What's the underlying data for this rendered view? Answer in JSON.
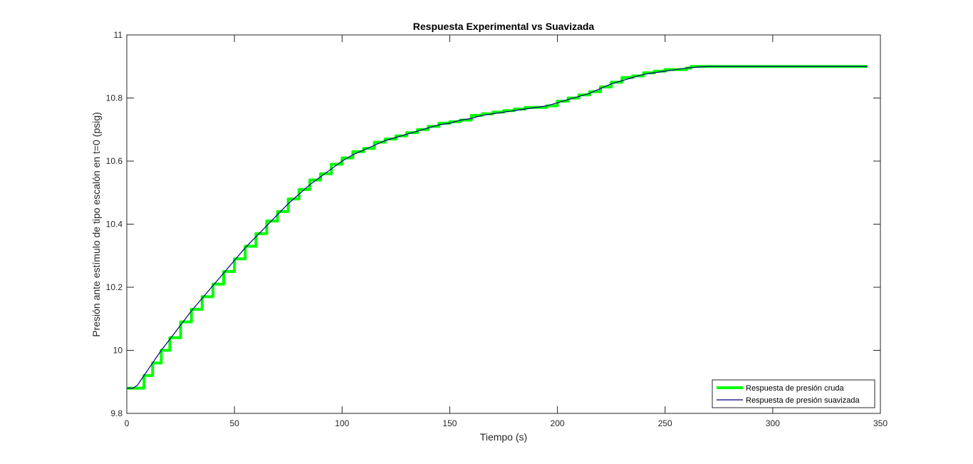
{
  "chart_data": {
    "type": "line",
    "title": "Respuesta Experimental vs Suavizada",
    "xlabel": "Tiempo (s)",
    "ylabel": "Presión ante estímulo de tipo escalón en t=0 (psig)",
    "xlim": [
      0,
      350
    ],
    "ylim": [
      9.8,
      11
    ],
    "xticks": [
      0,
      50,
      100,
      150,
      200,
      250,
      300,
      350
    ],
    "yticks": [
      9.8,
      10,
      10.2,
      10.4,
      10.6,
      10.8,
      11
    ],
    "xtick_labels": [
      "0",
      "50",
      "100",
      "150",
      "200",
      "250",
      "300",
      "350"
    ],
    "ytick_labels": [
      "9.8",
      "10",
      "10.2",
      "10.4",
      "10.6",
      "10.8",
      "11"
    ],
    "grid": false,
    "legend_position": "bottom-right",
    "series": [
      {
        "name": "Respuesta de presión cruda",
        "color": "#00ff00",
        "style": "thick-step",
        "x": [
          0,
          5,
          8,
          12,
          16,
          20,
          25,
          30,
          35,
          40,
          45,
          50,
          55,
          60,
          65,
          70,
          75,
          80,
          85,
          90,
          95,
          100,
          105,
          110,
          115,
          120,
          125,
          130,
          135,
          140,
          145,
          150,
          155,
          160,
          165,
          170,
          175,
          180,
          185,
          190,
          195,
          200,
          205,
          210,
          215,
          220,
          225,
          230,
          235,
          240,
          245,
          250,
          255,
          260,
          262,
          280,
          300,
          320,
          344
        ],
        "y": [
          9.88,
          9.88,
          9.92,
          9.96,
          10.0,
          10.04,
          10.09,
          10.13,
          10.17,
          10.21,
          10.25,
          10.29,
          10.33,
          10.37,
          10.41,
          10.44,
          10.48,
          10.51,
          10.54,
          10.56,
          10.59,
          10.61,
          10.63,
          10.64,
          10.66,
          10.67,
          10.68,
          10.69,
          10.7,
          10.71,
          10.72,
          10.725,
          10.73,
          10.745,
          10.75,
          10.755,
          10.76,
          10.765,
          10.77,
          10.77,
          10.775,
          10.79,
          10.8,
          10.81,
          10.82,
          10.835,
          10.85,
          10.865,
          10.87,
          10.88,
          10.885,
          10.89,
          10.89,
          10.895,
          10.9,
          10.9,
          10.9,
          10.9,
          10.9
        ]
      },
      {
        "name": "Respuesta de presión suavizada",
        "color": "#000080",
        "style": "thin",
        "x": [
          0,
          3,
          5,
          8,
          12,
          16,
          20,
          25,
          30,
          35,
          40,
          45,
          50,
          55,
          60,
          65,
          70,
          75,
          80,
          85,
          90,
          95,
          100,
          105,
          110,
          115,
          120,
          125,
          130,
          135,
          140,
          145,
          150,
          155,
          160,
          165,
          170,
          175,
          180,
          185,
          190,
          195,
          200,
          205,
          210,
          215,
          220,
          225,
          230,
          235,
          240,
          245,
          250,
          255,
          260,
          265,
          270,
          280,
          300,
          320,
          344
        ],
        "y": [
          9.88,
          9.88,
          9.89,
          9.92,
          9.96,
          10.0,
          10.035,
          10.08,
          10.125,
          10.165,
          10.205,
          10.245,
          10.285,
          10.325,
          10.36,
          10.395,
          10.43,
          10.465,
          10.495,
          10.525,
          10.55,
          10.575,
          10.6,
          10.62,
          10.635,
          10.65,
          10.665,
          10.675,
          10.685,
          10.695,
          10.705,
          10.715,
          10.72,
          10.73,
          10.735,
          10.745,
          10.75,
          10.755,
          10.76,
          10.765,
          10.77,
          10.775,
          10.785,
          10.795,
          10.805,
          10.815,
          10.83,
          10.845,
          10.855,
          10.865,
          10.875,
          10.88,
          10.885,
          10.89,
          10.895,
          10.898,
          10.9,
          10.9,
          10.9,
          10.9,
          10.9
        ]
      }
    ]
  }
}
